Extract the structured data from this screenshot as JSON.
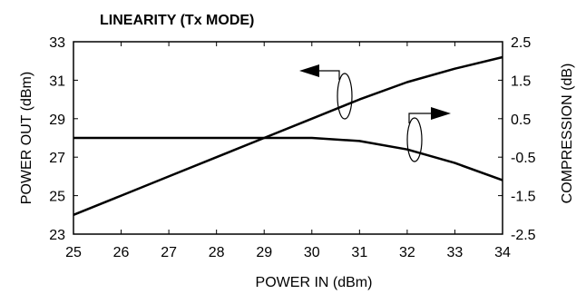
{
  "chart_data": {
    "type": "line",
    "title": "LINEARITY (Tx MODE)",
    "xlabel": "POWER IN (dBm)",
    "ylabel": "POWER OUT (dBm)",
    "y2label": "COMPRESSION (dB)",
    "xlim": [
      25,
      34
    ],
    "ylim": [
      23,
      33
    ],
    "y2lim": [
      -2.5,
      2.5
    ],
    "x_ticks": [
      "25",
      "26",
      "27",
      "28",
      "29",
      "30",
      "31",
      "32",
      "33",
      "34"
    ],
    "y_ticks": [
      "33",
      "31",
      "29",
      "27",
      "25",
      "23"
    ],
    "y2_ticks": [
      "2.5",
      "1.5",
      "0.5",
      "-0.5",
      "-1.5",
      "-2.5"
    ],
    "grid": false,
    "legend": "none",
    "series": [
      {
        "axis": "left",
        "x": [
          25,
          26,
          27,
          28,
          29,
          30,
          31,
          32,
          33,
          34
        ],
        "values": [
          24.0,
          25.0,
          26.0,
          27.0,
          28.0,
          29.0,
          30.0,
          30.9,
          31.6,
          32.2
        ]
      },
      {
        "axis": "right",
        "x": [
          25,
          26,
          27,
          28,
          29,
          30,
          31,
          32,
          33,
          34
        ],
        "values": [
          0.0,
          0.0,
          0.0,
          0.0,
          0.0,
          0.0,
          -0.08,
          -0.3,
          -0.65,
          -1.1
        ]
      }
    ]
  }
}
